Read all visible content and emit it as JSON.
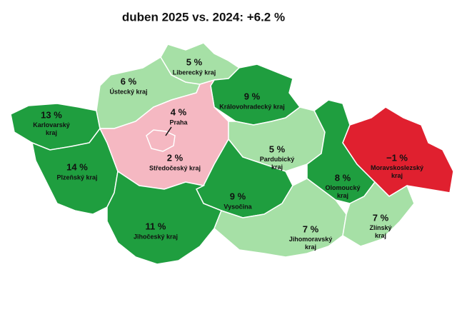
{
  "title": "duben 2025 vs. 2024: +6.2 %",
  "regions": [
    {
      "name": "Karlovarský kraj",
      "change": "13 %",
      "color": "#1f9e3f"
    },
    {
      "name": "Plzeňský kraj",
      "change": "14 %",
      "color": "#1f9e3f"
    },
    {
      "name": "Ústecký kraj",
      "change": "6 %",
      "color": "#a6e0a6"
    },
    {
      "name": "Liberecký kraj",
      "change": "5 %",
      "color": "#a6e0a6"
    },
    {
      "name": "Královohradecký kraj",
      "change": "9 %",
      "color": "#1f9e3f"
    },
    {
      "name": "Středočeský kraj",
      "change": "2 %",
      "color": "#f5b8c2"
    },
    {
      "name": "Praha",
      "change": "4 %",
      "color": "#f5b8c2"
    },
    {
      "name": "Pardubický kraj",
      "change": "5 %",
      "color": "#a6e0a6"
    },
    {
      "name": "Vysočina",
      "change": "9 %",
      "color": "#1f9e3f"
    },
    {
      "name": "Jihočeský kraj",
      "change": "11 %",
      "color": "#1f9e3f"
    },
    {
      "name": "Jihomoravský kraj",
      "change": "7 %",
      "color": "#a6e0a6"
    },
    {
      "name": "Olomoucký kraj",
      "change": "8 %",
      "color": "#1f9e3f"
    },
    {
      "name": "Moravskoslezský kraj",
      "change": "−1 %",
      "color": "#e0202f"
    },
    {
      "name": "Zlínský kraj",
      "change": "7 %",
      "color": "#a6e0a6"
    }
  ]
}
